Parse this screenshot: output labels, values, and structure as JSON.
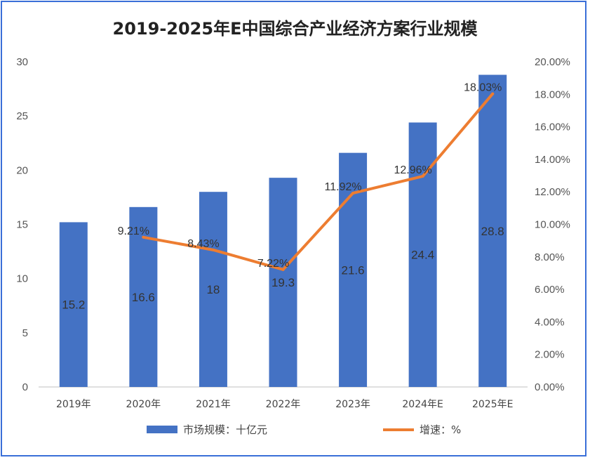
{
  "chart_data": {
    "type": "bar",
    "title": "2019-2025年E中国综合产业经济方案行业规模",
    "categories": [
      "2019年",
      "2020年",
      "2021年",
      "2022年",
      "2023年",
      "2024年E",
      "2025年E"
    ],
    "series": [
      {
        "name": "市场规模：十亿元",
        "type": "bar",
        "axis": "left",
        "color": "#4472c4",
        "values": [
          15.2,
          16.6,
          18,
          19.3,
          21.6,
          24.4,
          28.8
        ],
        "labels": [
          "15.2",
          "16.6",
          "18",
          "19.3",
          "21.6",
          "24.4",
          "28.8"
        ]
      },
      {
        "name": "增速：%",
        "type": "line",
        "axis": "right",
        "color": "#ed7d31",
        "values": [
          null,
          9.21,
          8.43,
          7.22,
          11.92,
          12.96,
          18.03
        ],
        "labels": [
          "",
          "9.21%",
          "8.43%",
          "7.22%",
          "11.92%",
          "12.96%",
          "18.03%"
        ]
      }
    ],
    "y_left": {
      "range": [
        0,
        30
      ],
      "ticks": [
        0,
        5,
        10,
        15,
        20,
        25,
        30
      ],
      "tick_labels": [
        "0",
        "5",
        "10",
        "15",
        "20",
        "25",
        "30"
      ]
    },
    "y_right": {
      "range": [
        0,
        20
      ],
      "ticks": [
        0,
        2,
        4,
        6,
        8,
        10,
        12,
        14,
        16,
        18,
        20
      ],
      "tick_labels": [
        "0.00%",
        "2.00%",
        "4.00%",
        "6.00%",
        "8.00%",
        "10.00%",
        "12.00%",
        "14.00%",
        "16.00%",
        "18.00%",
        "20.00%"
      ]
    },
    "grid": false,
    "legend_position": "bottom"
  }
}
